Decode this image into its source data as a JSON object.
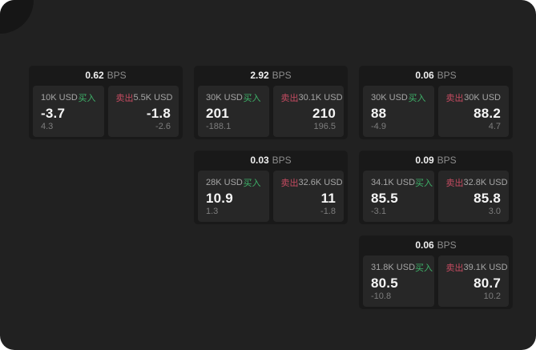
{
  "page": {
    "background": "#212121",
    "card_bg": "#191919",
    "tile_bg": "#272727",
    "corner_accent": "#161616"
  },
  "labels": {
    "bps_suffix": "BPS",
    "buy": "买入",
    "sell": "卖出"
  },
  "colors": {
    "buy_green": "#3eb269",
    "sell_red": "#c54b61"
  },
  "cards": [
    {
      "col": 0,
      "row": 0,
      "bps": "0.62",
      "buy": {
        "amount": "10K USD",
        "value": "-3.7",
        "delta": "4.3"
      },
      "sell": {
        "amount": "5.5K USD",
        "value": "-1.8",
        "delta": "-2.6"
      }
    },
    {
      "col": 1,
      "row": 0,
      "bps": "2.92",
      "buy": {
        "amount": "30K USD",
        "value": "201",
        "delta": "-188.1"
      },
      "sell": {
        "amount": "30.1K USD",
        "value": "210",
        "delta": "196.5"
      }
    },
    {
      "col": 2,
      "row": 0,
      "bps": "0.06",
      "buy": {
        "amount": "30K USD",
        "value": "88",
        "delta": "-4.9"
      },
      "sell": {
        "amount": "30K USD",
        "value": "88.2",
        "delta": "4.7"
      }
    },
    {
      "col": 1,
      "row": 1,
      "bps": "0.03",
      "buy": {
        "amount": "28K USD",
        "value": "10.9",
        "delta": "1.3"
      },
      "sell": {
        "amount": "32.6K USD",
        "value": "11",
        "delta": "-1.8"
      }
    },
    {
      "col": 2,
      "row": 1,
      "bps": "0.09",
      "buy": {
        "amount": "34.1K USD",
        "value": "85.5",
        "delta": "-3.1"
      },
      "sell": {
        "amount": "32.8K USD",
        "value": "85.8",
        "delta": "3.0"
      }
    },
    {
      "col": 2,
      "row": 2,
      "bps": "0.06",
      "buy": {
        "amount": "31.8K USD",
        "value": "80.5",
        "delta": "-10.8"
      },
      "sell": {
        "amount": "39.1K USD",
        "value": "80.7",
        "delta": "10.2"
      }
    }
  ]
}
